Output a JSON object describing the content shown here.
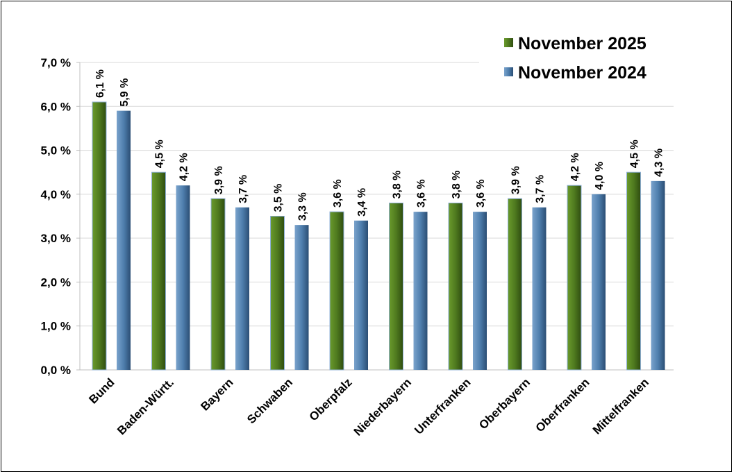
{
  "chart_data": {
    "type": "bar",
    "categories": [
      "Bund",
      "Baden-Württ.",
      "Bayern",
      "Schwaben",
      "Oberpfalz",
      "Niederbayern",
      "Unterfranken",
      "Oberbayern",
      "Oberfranken",
      "Mittelfranken"
    ],
    "series": [
      {
        "name": "November 2025",
        "color": "#4f7a1f",
        "values": [
          6.1,
          4.5,
          3.9,
          3.5,
          3.6,
          3.8,
          3.8,
          3.9,
          4.2,
          4.5
        ],
        "labels": [
          "6,1 %",
          "4,5 %",
          "3,9 %",
          "3,5 %",
          "3,6 %",
          "3,8 %",
          "3,8 %",
          "3,9 %",
          "4,2 %",
          "4,5 %"
        ]
      },
      {
        "name": "November 2024",
        "color": "#4f7fae",
        "values": [
          5.9,
          4.2,
          3.7,
          3.3,
          3.4,
          3.6,
          3.6,
          3.7,
          4.0,
          4.3
        ],
        "labels": [
          "5,9 %",
          "4,2 %",
          "3,7 %",
          "3,3 %",
          "3,4 %",
          "3,6 %",
          "3,6 %",
          "3,7 %",
          "4,0 %",
          "4,3 %"
        ]
      }
    ],
    "ylim": [
      0,
      7
    ],
    "yticks": [
      0,
      1,
      2,
      3,
      4,
      5,
      6,
      7
    ],
    "ytick_labels": [
      "0,0 %",
      "1,0 %",
      "2,0 %",
      "3,0 %",
      "4,0 %",
      "5,0 %",
      "6,0 %",
      "7,0 %"
    ],
    "grid": true,
    "legend_position": "top-right",
    "title": "",
    "xlabel": "",
    "ylabel": ""
  }
}
